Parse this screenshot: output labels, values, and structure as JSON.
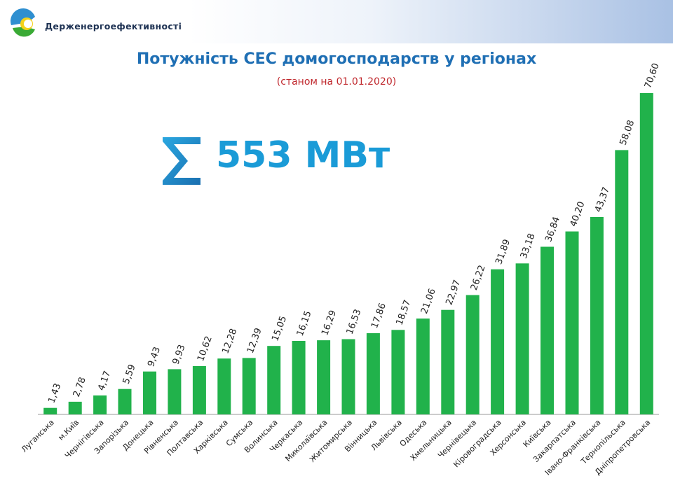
{
  "header": {
    "org_name": "Держенергоефективності"
  },
  "colors": {
    "bar": "#21b24b",
    "title": "#1f6fb4",
    "subtitle": "#c0282d",
    "total": "#1a9bd7"
  },
  "summary": {
    "total_label": "553 МВт",
    "icon": "sigma-icon"
  },
  "chart_data": {
    "type": "bar",
    "title": "Потужність СЕС домогосподарств у регіонах",
    "subtitle": "(станом на 01.01.2020)",
    "xlabel": "",
    "ylabel": "",
    "ylim": [
      0,
      70.6
    ],
    "grid": false,
    "legend": "none",
    "categories": [
      "Луганська",
      "м.Київ",
      "Чернігівська",
      "Запорізька",
      "Донецька",
      "Рівненська",
      "Полтавська",
      "Харківська",
      "Сумська",
      "Волинська",
      "Черкаська",
      "Миколаївська",
      "Житомирська",
      "Вінницька",
      "Львівська",
      "Одеська",
      "Хмельницька",
      "Чернівецька",
      "Кіровоградська",
      "Херсонська",
      "Київська",
      "Закарпатська",
      "Івано-Франківська",
      "Тернопільська",
      "Дніпропетровська"
    ],
    "values": [
      1.43,
      2.78,
      4.17,
      5.59,
      9.43,
      9.93,
      10.62,
      12.28,
      12.39,
      15.05,
      16.15,
      16.29,
      16.53,
      17.86,
      18.57,
      21.06,
      22.97,
      26.22,
      31.89,
      33.18,
      36.84,
      40.2,
      43.37,
      58.08,
      70.6
    ],
    "value_labels": [
      "1,43",
      "2,78",
      "4,17",
      "5,59",
      "9,43",
      "9,93",
      "10,62",
      "12,28",
      "12,39",
      "15,05",
      "16,15",
      "16,29",
      "16,53",
      "17,86",
      "18,57",
      "21,06",
      "22,97",
      "26,22",
      "31,89",
      "33,18",
      "36,84",
      "40,20",
      "43,37",
      "58,08",
      "70,60"
    ]
  }
}
